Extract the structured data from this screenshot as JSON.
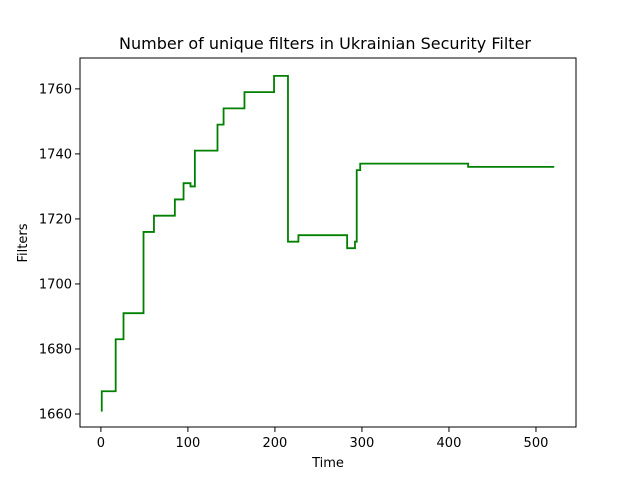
{
  "chart_data": {
    "type": "line",
    "title": "Number of unique filters in Ukrainian Security Filter",
    "xlabel": "Time",
    "ylabel": "Filters",
    "xlim": [
      -24,
      546
    ],
    "ylim": [
      1656,
      1769.5
    ],
    "xticks": [
      0,
      100,
      200,
      300,
      400,
      500
    ],
    "yticks": [
      1660,
      1680,
      1700,
      1720,
      1740,
      1760
    ],
    "grid": false,
    "color": "#008000",
    "steps": [
      [
        0,
        1661
      ],
      [
        1,
        1667
      ],
      [
        17,
        1683
      ],
      [
        26,
        1691
      ],
      [
        49,
        1716
      ],
      [
        61,
        1721
      ],
      [
        85,
        1726
      ],
      [
        95,
        1731
      ],
      [
        103,
        1730
      ],
      [
        108,
        1741
      ],
      [
        134,
        1749
      ],
      [
        141,
        1754
      ],
      [
        165,
        1759
      ],
      [
        199,
        1764
      ],
      [
        215,
        1713
      ],
      [
        227,
        1715
      ],
      [
        283,
        1711
      ],
      [
        292,
        1713
      ],
      [
        294,
        1735
      ],
      [
        298,
        1737
      ],
      [
        422,
        1736
      ],
      [
        521,
        1736
      ]
    ]
  }
}
